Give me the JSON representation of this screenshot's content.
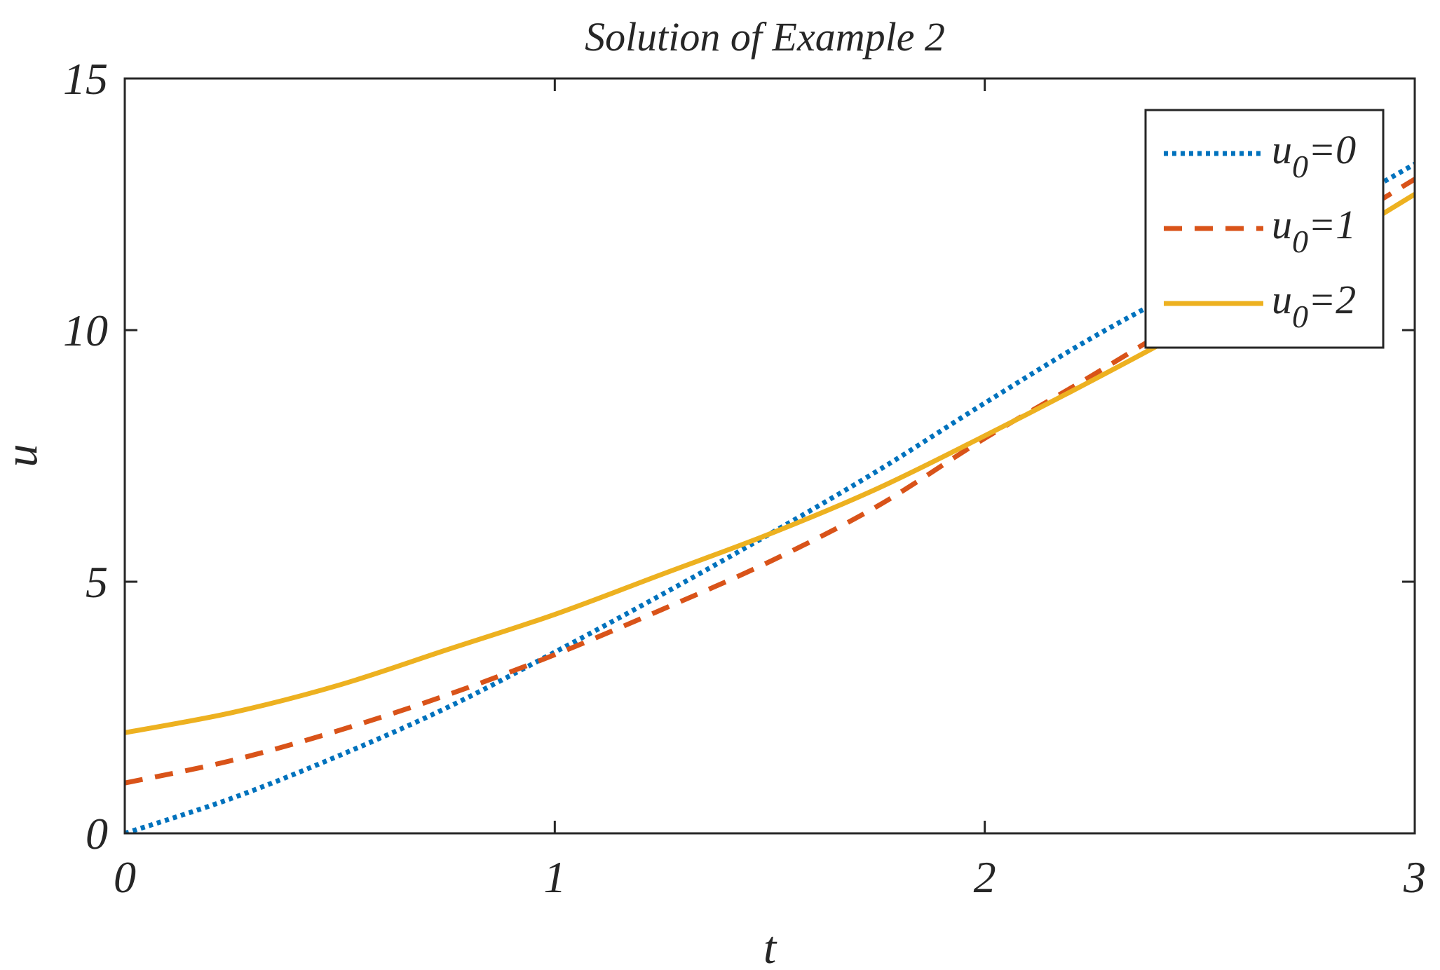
{
  "chart_data": {
    "type": "line",
    "title": "Solution of Example 2",
    "xlabel": "t",
    "ylabel": "u",
    "xlim": [
      0,
      3
    ],
    "ylim": [
      0,
      15
    ],
    "xticks": [
      0,
      1,
      2,
      3
    ],
    "yticks": [
      0,
      5,
      10,
      15
    ],
    "xtick_labels": [
      "0",
      "1",
      "2",
      "3"
    ],
    "ytick_labels": [
      "0",
      "5",
      "10",
      "15"
    ],
    "grid": false,
    "legend_position": "top-right",
    "series": [
      {
        "name": "u0=0",
        "legend_main": "u",
        "legend_sub": "0",
        "legend_rest": "=0",
        "color": "#0072BD",
        "line_style": "dotted",
        "x": [
          0,
          0.25,
          0.5,
          0.75,
          1.0,
          1.25,
          1.5,
          1.75,
          2.0,
          2.25,
          2.5,
          2.75,
          3.0
        ],
        "y": [
          0,
          0.7,
          1.55,
          2.5,
          3.6,
          4.75,
          5.95,
          7.2,
          8.55,
          9.85,
          11.0,
          12.1,
          13.3
        ]
      },
      {
        "name": "u0=1",
        "legend_main": "u",
        "legend_sub": "0",
        "legend_rest": "=1",
        "color": "#D95319",
        "line_style": "dashed",
        "x": [
          0,
          0.25,
          0.5,
          0.75,
          1.0,
          1.25,
          1.5,
          1.75,
          2.0,
          2.25,
          2.5,
          2.75,
          3.0
        ],
        "y": [
          1.0,
          1.45,
          2.05,
          2.75,
          3.55,
          4.45,
          5.4,
          6.5,
          7.85,
          9.1,
          10.4,
          11.7,
          13.0
        ]
      },
      {
        "name": "u0=2",
        "legend_main": "u",
        "legend_sub": "0",
        "legend_rest": "=2",
        "color": "#EDB120",
        "line_style": "solid",
        "x": [
          0,
          0.25,
          0.5,
          0.75,
          1.0,
          1.25,
          1.5,
          1.75,
          2.0,
          2.25,
          2.5,
          2.75,
          3.0
        ],
        "y": [
          2.0,
          2.4,
          2.95,
          3.65,
          4.35,
          5.15,
          5.95,
          6.85,
          7.9,
          9.0,
          10.15,
          11.4,
          12.7
        ]
      }
    ]
  }
}
